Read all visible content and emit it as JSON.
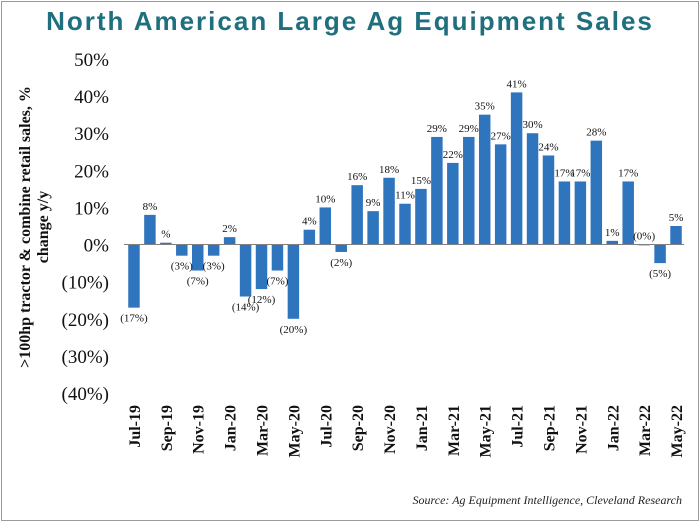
{
  "chart_data": {
    "type": "bar",
    "title": "North American Large Ag Equipment Sales",
    "ylabel_line1": ">100hp tractor & combine retail sales, %",
    "ylabel_line2": "change y/y",
    "source": "Source: Ag Equipment Intelligence, Cleveland Research",
    "bar_color": "#2f75bd",
    "title_color": "#1f6f7f",
    "ylim": [
      -40,
      50
    ],
    "y_ticks": [
      {
        "value": 50,
        "label": "50%"
      },
      {
        "value": 40,
        "label": "40%"
      },
      {
        "value": 30,
        "label": "30%"
      },
      {
        "value": 20,
        "label": "20%"
      },
      {
        "value": 10,
        "label": "10%"
      },
      {
        "value": 0,
        "label": "0%"
      },
      {
        "value": -10,
        "label": "(10%)"
      },
      {
        "value": -20,
        "label": "(20%)"
      },
      {
        "value": -30,
        "label": "(30%)"
      },
      {
        "value": -40,
        "label": "(40%)"
      }
    ],
    "grid": false,
    "legend": "none",
    "categories": [
      "Jul-19",
      "Aug-19",
      "Sep-19",
      "Oct-19",
      "Nov-19",
      "Dec-19",
      "Jan-20",
      "Feb-20",
      "Mar-20",
      "Apr-20",
      "May-20",
      "Jun-20",
      "Jul-20",
      "Aug-20",
      "Sep-20",
      "Oct-20",
      "Nov-20",
      "Dec-20",
      "Jan-21",
      "Feb-21",
      "Mar-21",
      "Apr-21",
      "May-21",
      "Jun-21",
      "Jul-21",
      "Aug-21",
      "Sep-21",
      "Oct-21",
      "Nov-21",
      "Dec-21",
      "Jan-22",
      "Feb-22",
      "Mar-22",
      "Apr-22",
      "May-22"
    ],
    "x_tick_labels": [
      "Jul-19",
      "Sep-19",
      "Nov-19",
      "Jan-20",
      "Mar-20",
      "May-20",
      "Jul-20",
      "Sep-20",
      "Nov-20",
      "Jan-21",
      "Mar-21",
      "May-21",
      "Jul-21",
      "Sep-21",
      "Nov-21",
      "Jan-22",
      "Mar-22",
      "May-22"
    ],
    "values": [
      -17,
      8,
      0.5,
      -3,
      -7,
      -3,
      2,
      -14,
      -12,
      -7,
      -20,
      4,
      10,
      -2,
      16,
      9,
      18,
      11,
      15,
      29,
      22,
      29,
      35,
      27,
      41,
      30,
      24,
      17,
      17,
      28,
      1,
      17,
      0,
      -5,
      5
    ],
    "data_labels": [
      "(17%)",
      "8%",
      "%",
      "(3%)",
      "(7%)",
      "(3%)",
      "2%",
      "(14%)",
      "(12%)",
      "(7%)",
      "(20%)",
      "4%",
      "10%",
      "(2%)",
      "16%",
      "9%",
      "18%",
      "11%",
      "15%",
      "29%",
      "22%",
      "29%",
      "35%",
      "27%",
      "41%",
      "30%",
      "24%",
      "17%",
      "17%",
      "28%",
      "1%",
      "17%",
      "(0%)",
      "(5%)",
      "5%"
    ],
    "label_offsets": [
      0,
      0,
      0,
      0,
      0,
      0,
      0,
      0,
      0,
      0,
      0,
      0,
      0,
      0,
      0,
      0,
      0,
      0,
      0,
      0,
      0,
      0,
      0,
      0,
      0,
      0,
      0,
      0,
      0,
      0,
      0,
      0,
      0,
      0,
      0
    ]
  }
}
